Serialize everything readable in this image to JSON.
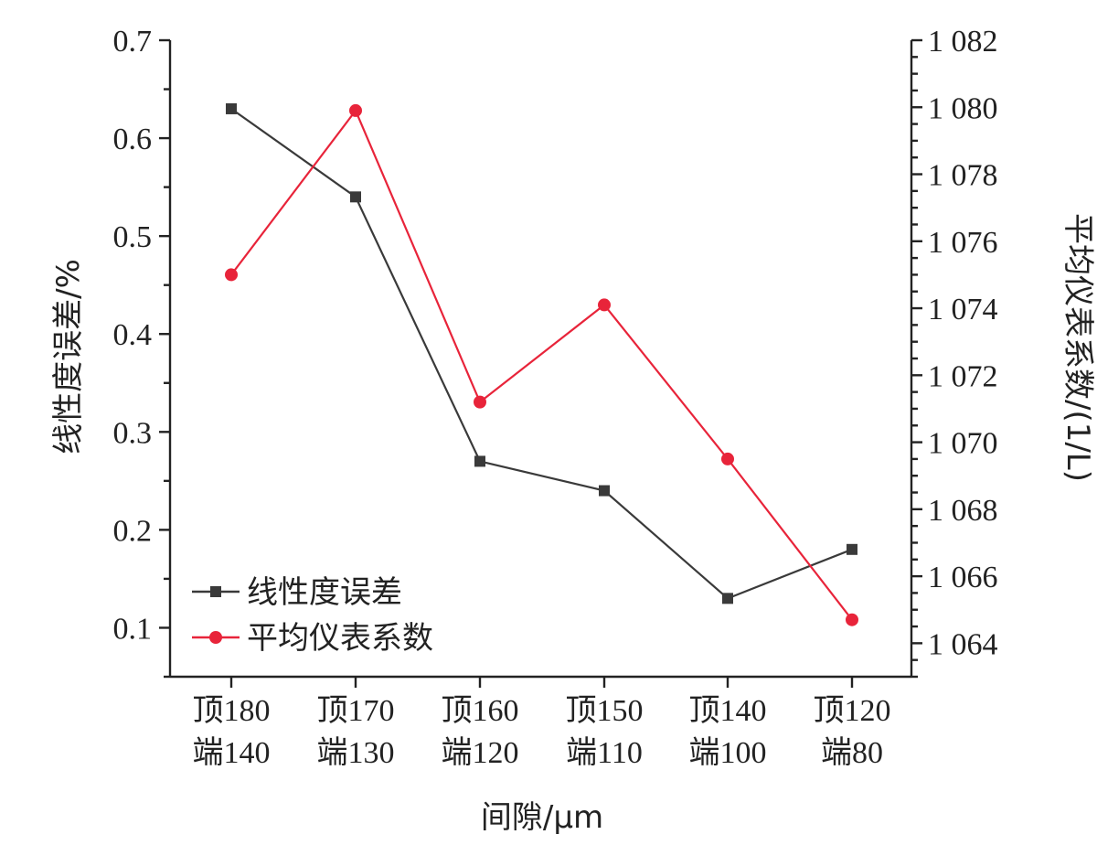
{
  "chart_data": {
    "type": "line",
    "title": "",
    "xlabel": "间隙/μm",
    "ylabel_left": "线性度误差/%",
    "ylabel_right": "平均仪表系数/(1/L)",
    "categories": [
      [
        "顶180",
        "端140"
      ],
      [
        "顶170",
        "端130"
      ],
      [
        "顶160",
        "端120"
      ],
      [
        "顶150",
        "端110"
      ],
      [
        "顶140",
        "端100"
      ],
      [
        "顶120",
        "端80"
      ]
    ],
    "y_left": {
      "range": [
        0.05,
        0.7
      ],
      "ticks": [
        0.1,
        0.2,
        0.3,
        0.4,
        0.5,
        0.6,
        0.7
      ],
      "tick_labels": [
        "0.1",
        "0.2",
        "0.3",
        "0.4",
        "0.5",
        "0.6",
        "0.7"
      ]
    },
    "y_right": {
      "range": [
        1063.0,
        1082.0
      ],
      "ticks": [
        1064,
        1066,
        1068,
        1070,
        1072,
        1074,
        1076,
        1078,
        1080,
        1082
      ],
      "tick_labels": [
        "1 064",
        "1 066",
        "1 068",
        "1 070",
        "1 072",
        "1 074",
        "1 076",
        "1 078",
        "1 080",
        "1 082"
      ]
    },
    "series": [
      {
        "name": "线性度误差",
        "axis": "left",
        "marker": "square",
        "color": "#3a3a3a",
        "values": [
          0.63,
          0.54,
          0.27,
          0.24,
          0.13,
          0.18
        ]
      },
      {
        "name": "平均仪表系数",
        "axis": "right",
        "marker": "circle",
        "color": "#e8243a",
        "values": [
          1075.0,
          1079.9,
          1071.2,
          1074.1,
          1069.5,
          1064.7
        ]
      }
    ],
    "legend": {
      "position": "bottom-left"
    },
    "grid": false
  }
}
